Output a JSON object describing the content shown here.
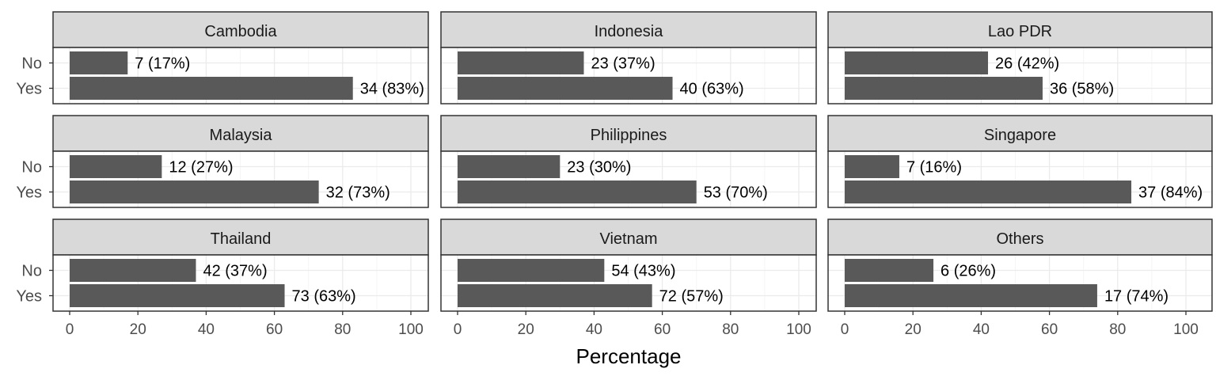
{
  "chart_data": {
    "type": "bar",
    "orientation": "horizontal",
    "facet_layout": "3x3 grid",
    "categories": [
      "No",
      "Yes"
    ],
    "xlabel": "Percentage",
    "xlim": [
      0,
      100
    ],
    "xticks": [
      "0",
      "20",
      "40",
      "60",
      "80",
      "100"
    ],
    "grid": true,
    "colors": {
      "bar": "#595959",
      "strip_fill": "#d9d9d9",
      "panel_border": "#333333",
      "grid_major": "#ebebeb",
      "grid_minor": "#f5f5f5"
    },
    "panels": [
      {
        "title": "Cambodia",
        "values": [
          17,
          83
        ],
        "labels": [
          "7 (17%)",
          "34 (83%)"
        ]
      },
      {
        "title": "Indonesia",
        "values": [
          37,
          63
        ],
        "labels": [
          "23 (37%)",
          "40 (63%)"
        ]
      },
      {
        "title": "Lao PDR",
        "values": [
          42,
          58
        ],
        "labels": [
          "26 (42%)",
          "36 (58%)"
        ]
      },
      {
        "title": "Malaysia",
        "values": [
          27,
          73
        ],
        "labels": [
          "12 (27%)",
          "32 (73%)"
        ]
      },
      {
        "title": "Philippines",
        "values": [
          30,
          70
        ],
        "labels": [
          "23 (30%)",
          "53 (70%)"
        ]
      },
      {
        "title": "Singapore",
        "values": [
          16,
          84
        ],
        "labels": [
          "7 (16%)",
          "37 (84%)"
        ]
      },
      {
        "title": "Thailand",
        "values": [
          37,
          63
        ],
        "labels": [
          "42 (37%)",
          "73 (63%)"
        ]
      },
      {
        "title": "Vietnam",
        "values": [
          43,
          57
        ],
        "labels": [
          "54 (43%)",
          "72 (57%)"
        ]
      },
      {
        "title": "Others",
        "values": [
          26,
          74
        ],
        "labels": [
          "6 (26%)",
          "17 (74%)"
        ]
      }
    ]
  }
}
